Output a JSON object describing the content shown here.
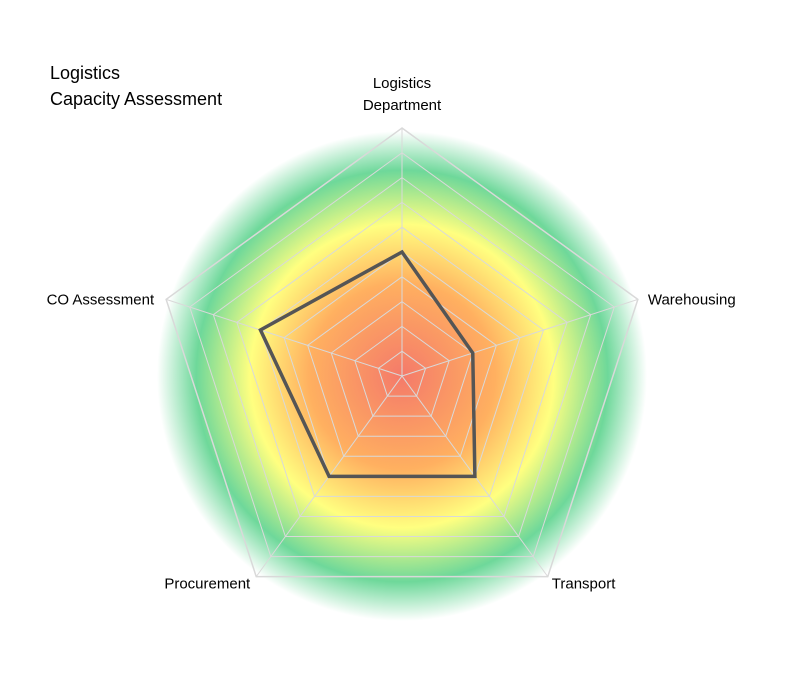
{
  "chart_data": {
    "type": "radar",
    "title_lines": [
      "Logistics",
      "Capacity Assessment"
    ],
    "axes": [
      {
        "label_lines": [
          "Logistics",
          "Department"
        ]
      },
      {
        "label_lines": [
          "Warehousing"
        ]
      },
      {
        "label_lines": [
          "Transport"
        ]
      },
      {
        "label_lines": [
          "Procurement"
        ]
      },
      {
        "label_lines": [
          "CO Assessment"
        ]
      }
    ],
    "series": [
      {
        "values": [
          2.5,
          1.5,
          2.5,
          2.5,
          3.0
        ],
        "color": "#555555"
      }
    ],
    "scale_max": 5,
    "grid_rings": 10,
    "grid_color": "#d9d9d9",
    "background_gradient": [
      "#f47a6a",
      "#ffb060",
      "#ffff80",
      "#6ed89a"
    ]
  }
}
